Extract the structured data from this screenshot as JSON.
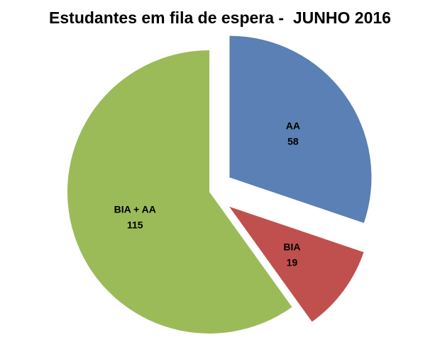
{
  "chart_data": {
    "type": "pie",
    "title": "Estudantes em fila de espera -  JUNHO 2016",
    "slices": [
      {
        "label": "AA",
        "value": 58,
        "color": "#5A80B5",
        "exploded": true
      },
      {
        "label": "BIA",
        "value": 19,
        "color": "#C0504D",
        "exploded": true
      },
      {
        "label": "BIA + AA",
        "value": 115,
        "color": "#9BBB59",
        "exploded": false
      }
    ],
    "legend": "none",
    "data_labels": "category and value, inside"
  }
}
